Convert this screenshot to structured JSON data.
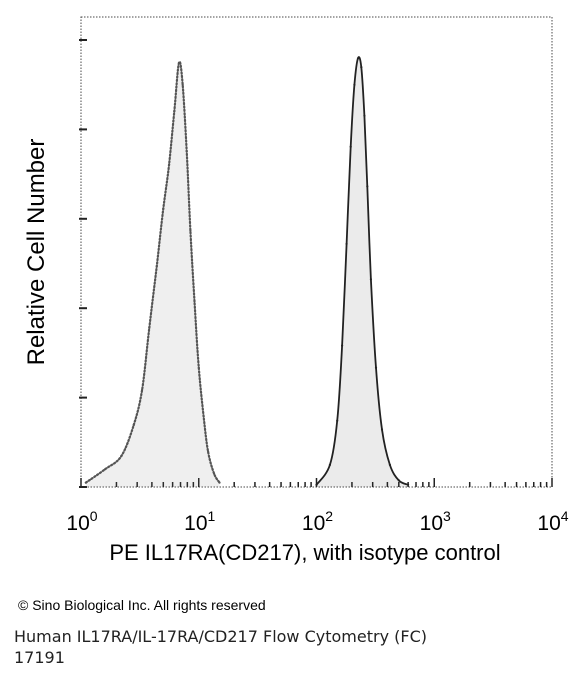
{
  "chart_data": {
    "type": "area",
    "title": "",
    "xlabel": "PE IL17RA(CD217), with isotype control",
    "ylabel": "Relative Cell Number",
    "x_scale": "log",
    "xlim": [
      1,
      10000
    ],
    "ylim": [
      0,
      1
    ],
    "x_ticks": [
      {
        "value": 1,
        "base": "10",
        "exp": "0"
      },
      {
        "value": 10,
        "base": "10",
        "exp": "1"
      },
      {
        "value": 100,
        "base": "10",
        "exp": "2"
      },
      {
        "value": 1000,
        "base": "10",
        "exp": "3"
      },
      {
        "value": 10000,
        "base": "10",
        "exp": "4"
      }
    ],
    "grid": false,
    "legend": "none",
    "series": [
      {
        "style": "dotted-outline",
        "color": "#555555",
        "x": [
          1.1,
          1.6,
          2.2,
          2.8,
          3.3,
          3.8,
          4.4,
          5.0,
          5.6,
          6.2,
          6.8,
          7.3,
          7.9,
          8.5,
          9.2,
          10.0,
          11.0,
          12.0,
          13.5,
          15.0
        ],
        "values": [
          0.01,
          0.04,
          0.07,
          0.14,
          0.22,
          0.36,
          0.5,
          0.63,
          0.73,
          0.85,
          0.96,
          0.91,
          0.76,
          0.58,
          0.42,
          0.27,
          0.16,
          0.08,
          0.03,
          0.01
        ]
      },
      {
        "style": "solid-outline",
        "color": "#222222",
        "x": [
          100,
          130,
          150,
          165,
          180,
          195,
          210,
          225,
          240,
          255,
          270,
          290,
          320,
          360,
          420,
          500,
          600
        ],
        "values": [
          0.005,
          0.05,
          0.15,
          0.32,
          0.55,
          0.77,
          0.91,
          0.97,
          0.95,
          0.84,
          0.68,
          0.47,
          0.27,
          0.13,
          0.05,
          0.015,
          0.005
        ]
      }
    ]
  },
  "footer": {
    "copyright": "© Sino Biological Inc. All rights reserved",
    "caption_line1": "Human IL17RA/IL-17RA/CD217 Flow Cytometry (FC)",
    "caption_line2": "17191"
  }
}
